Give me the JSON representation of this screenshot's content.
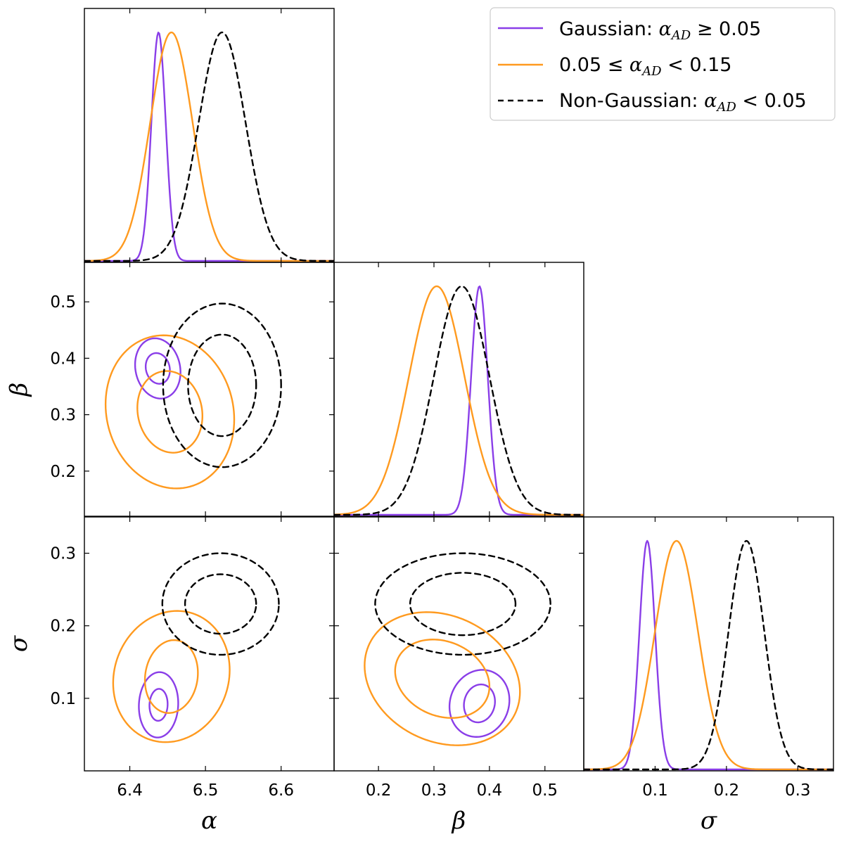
{
  "colors": {
    "gaussian": "#8a3ee8",
    "mid": "#ff9a1f",
    "nongauss": "#000000"
  },
  "legend": {
    "placement": "top-right",
    "entries": [
      {
        "series": "gaussian",
        "prefix": "Gaussian: ",
        "math": "α",
        "sub": "AD",
        "rel": " ≥ 0.05"
      },
      {
        "series": "mid",
        "prefix": "0.05 ≤ ",
        "math": "α",
        "sub": "AD",
        "rel": " < 0.15"
      },
      {
        "series": "nongauss",
        "prefix": "Non-Gaussian: ",
        "math": "α",
        "sub": "AD",
        "rel": " < 0.05"
      }
    ]
  },
  "chart_data": {
    "type": "corner",
    "parameters": [
      {
        "name": "α",
        "range": [
          6.34,
          6.67
        ],
        "ticks": [
          6.4,
          6.5,
          6.6
        ],
        "tick_labels": [
          "6.4",
          "6.5",
          "6.6"
        ]
      },
      {
        "name": "β",
        "range": [
          0.12,
          0.57
        ],
        "ticks": [
          0.2,
          0.3,
          0.4,
          0.5
        ],
        "tick_labels": [
          "0.2",
          "0.3",
          "0.4",
          "0.5"
        ]
      },
      {
        "name": "σ",
        "range": [
          0.0,
          0.35
        ],
        "ticks": [
          0.1,
          0.2,
          0.3
        ],
        "tick_labels": [
          "0.1",
          "0.2",
          "0.3"
        ]
      }
    ],
    "series": [
      {
        "key": "gaussian",
        "style": "solid",
        "marginals": [
          {
            "mean": 6.438,
            "sd": 0.0095
          },
          {
            "mean": 0.382,
            "sd": 0.015
          },
          {
            "mean": 0.089,
            "sd": 0.011
          }
        ],
        "contours": {
          "beta_alpha": {
            "center": [
              6.437,
              0.382
            ],
            "inner": [
              0.016,
              0.027
            ],
            "outer": [
              0.03,
              0.053
            ],
            "tilt": -0.25
          },
          "sigma_alpha": {
            "center": [
              6.438,
              0.091
            ],
            "inner": [
              0.012,
              0.022
            ],
            "outer": [
              0.026,
              0.045
            ],
            "tilt": 0.1
          },
          "sigma_beta": {
            "center": [
              0.382,
              0.093
            ],
            "inner": [
              0.028,
              0.026
            ],
            "outer": [
              0.054,
              0.046
            ],
            "tilt": 0.2
          }
        }
      },
      {
        "key": "mid",
        "style": "solid",
        "marginals": [
          {
            "mean": 6.455,
            "sd": 0.028
          },
          {
            "mean": 0.305,
            "sd": 0.05
          },
          {
            "mean": 0.13,
            "sd": 0.03
          }
        ],
        "contours": {
          "beta_alpha": {
            "center": [
              6.453,
              0.305
            ],
            "inner": [
              0.043,
              0.072
            ],
            "outer": [
              0.085,
              0.135
            ],
            "tilt": -0.2
          },
          "sigma_alpha": {
            "center": [
              6.455,
              0.13
            ],
            "inner": [
              0.035,
              0.05
            ],
            "outer": [
              0.077,
              0.09
            ],
            "tilt": 0.2
          },
          "sigma_beta": {
            "center": [
              0.315,
              0.127
            ],
            "inner": [
              0.085,
              0.053
            ],
            "outer": [
              0.14,
              0.09
            ],
            "tilt": -0.4
          }
        }
      },
      {
        "key": "nongauss",
        "style": "dashed",
        "marginals": [
          {
            "mean": 6.522,
            "sd": 0.031
          },
          {
            "mean": 0.35,
            "sd": 0.05
          },
          {
            "mean": 0.228,
            "sd": 0.025
          }
        ],
        "contours": {
          "beta_alpha": {
            "center": [
              6.522,
              0.352
            ],
            "inner": [
              0.045,
              0.09
            ],
            "outer": [
              0.078,
              0.145
            ],
            "tilt": 0.0
          },
          "sigma_alpha": {
            "center": [
              6.52,
              0.23
            ],
            "inner": [
              0.047,
              0.041
            ],
            "outer": [
              0.077,
              0.07
            ],
            "tilt": 0.0
          },
          "sigma_beta": {
            "center": [
              0.352,
              0.23
            ],
            "inner": [
              0.095,
              0.043
            ],
            "outer": [
              0.158,
              0.07
            ],
            "tilt": 0.0
          }
        }
      }
    ]
  }
}
